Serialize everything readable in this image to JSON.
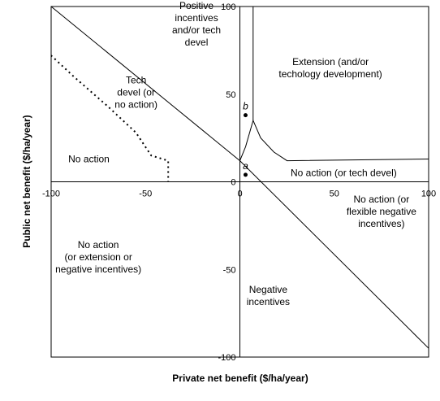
{
  "chart_data": {
    "type": "line",
    "xlabel": "Private net benefit ($/ha/year)",
    "ylabel": "Public net benefit ($/ha/year)",
    "xlim": [
      -100,
      100
    ],
    "ylim": [
      -100,
      100
    ],
    "x_ticks": [
      {
        "value": -100,
        "label": "-100"
      },
      {
        "value": -50,
        "label": "-50"
      },
      {
        "value": 0,
        "label": "0"
      },
      {
        "value": 50,
        "label": "50"
      },
      {
        "value": 100,
        "label": "100"
      }
    ],
    "y_ticks": [
      {
        "value": 100,
        "label": "100"
      },
      {
        "value": 50,
        "label": "50"
      },
      {
        "value": 0,
        "label": "0"
      },
      {
        "value": -50,
        "label": "-50"
      },
      {
        "value": -100,
        "label": "-100"
      }
    ],
    "grid": false,
    "legend": "none",
    "lines": [
      {
        "style": "solid",
        "points": [
          [
            -100,
            100
          ],
          [
            0,
            12
          ],
          [
            100,
            -95
          ]
        ]
      },
      {
        "style": "solid",
        "points": [
          [
            0,
            12
          ],
          [
            3,
            20
          ],
          [
            7,
            35
          ],
          [
            11,
            25
          ],
          [
            18,
            17
          ],
          [
            25,
            12
          ],
          [
            100,
            13
          ]
        ]
      },
      {
        "style": "solid",
        "points": [
          [
            7,
            35
          ],
          [
            7,
            100
          ]
        ]
      },
      {
        "style": "dotted",
        "points": [
          [
            -102,
            74
          ],
          [
            -88,
            60
          ],
          [
            -70,
            43
          ],
          [
            -55,
            28
          ],
          [
            -47,
            15
          ],
          [
            -38,
            12
          ],
          [
            -38,
            0
          ]
        ]
      }
    ],
    "points": [
      {
        "label": "a",
        "x": 3,
        "y": 4
      },
      {
        "label": "b",
        "x": 3,
        "y": 38
      }
    ],
    "regions": [
      {
        "x": -23,
        "y": 90,
        "lines": [
          "Positive",
          "incentives",
          "and/or tech",
          "devel"
        ]
      },
      {
        "x": 48,
        "y": 65,
        "lines": [
          "Extension (and/or",
          "techology development)"
        ]
      },
      {
        "x": -55,
        "y": 51,
        "lines": [
          "Tech",
          "devel (or",
          "no action)"
        ]
      },
      {
        "x": -80,
        "y": 13,
        "lines": [
          "No action"
        ]
      },
      {
        "x": 55,
        "y": 5,
        "lines": [
          "No action (or tech devel)"
        ]
      },
      {
        "x": 75,
        "y": -17,
        "lines": [
          "No action (or",
          "flexible negative",
          "incentives)"
        ]
      },
      {
        "x": -75,
        "y": -43,
        "lines": [
          "No action",
          "(or extension or",
          "negative incentives)"
        ]
      },
      {
        "x": 15,
        "y": -65,
        "lines": [
          "Negative",
          "incentives"
        ]
      }
    ]
  }
}
